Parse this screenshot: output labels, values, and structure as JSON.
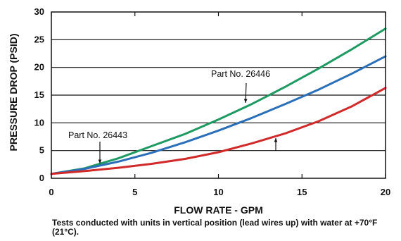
{
  "chart_data": {
    "type": "line",
    "title": "",
    "xlabel": "FLOW RATE - GPM",
    "ylabel": "PRESSURE DROP (PSID)",
    "xlim": [
      0,
      20
    ],
    "ylim": [
      0,
      30
    ],
    "x_ticks": [
      "0",
      "5",
      "10",
      "15",
      "20"
    ],
    "y_ticks": [
      "0",
      "5",
      "10",
      "15",
      "20",
      "25",
      "30"
    ],
    "grid": "horizontal",
    "series": [
      {
        "name": "Part No. 26446",
        "color": "#1e9a62",
        "x": [
          0,
          2,
          4,
          6,
          8,
          10,
          12,
          14,
          16,
          18,
          20
        ],
        "y": [
          0.8,
          1.8,
          3.6,
          5.8,
          8.0,
          10.6,
          13.4,
          16.5,
          19.8,
          23.3,
          27.0
        ]
      },
      {
        "name": "Part No. 26443",
        "color": "#2a6fb8",
        "x": [
          0,
          2,
          4,
          6,
          8,
          10,
          12,
          14,
          16,
          18,
          20
        ],
        "y": [
          0.8,
          1.7,
          3.0,
          4.6,
          6.5,
          8.6,
          10.9,
          13.4,
          16.0,
          18.9,
          22.0
        ]
      },
      {
        "color": "#d02a2a",
        "x": [
          0,
          2,
          4,
          6,
          8,
          10,
          12,
          14,
          16,
          18,
          20
        ],
        "y": [
          0.8,
          1.3,
          1.9,
          2.6,
          3.5,
          4.7,
          6.3,
          8.1,
          10.3,
          13.0,
          16.3
        ]
      }
    ],
    "annotations": [
      {
        "text": "Part No. 26446"
      },
      {
        "text": "Part No. 26443"
      }
    ]
  },
  "footnote": "Tests conducted with units in vertical position (lead wires up) with water at +70°F (21°C)."
}
